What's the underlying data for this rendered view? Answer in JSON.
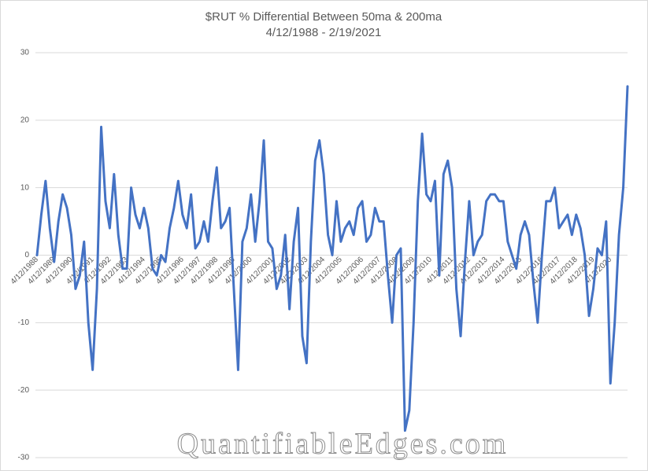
{
  "chart_data": {
    "type": "line",
    "title": "$RUT % Differential Between 50ma & 200ma",
    "subtitle": "4/12/1988 - 2/19/2021",
    "watermark": "QuantifiableEdges.com",
    "color": "#4472c4",
    "grid": true,
    "ylim": [
      -30,
      30
    ],
    "yticks": [
      -30,
      -20,
      -10,
      0,
      10,
      20,
      30
    ],
    "categories": [
      "4/12/1988",
      null,
      null,
      null,
      "4/12/1989",
      null,
      null,
      null,
      "4/12/1990",
      null,
      null,
      null,
      null,
      "4/12/1991",
      null,
      null,
      null,
      "4/12/1992",
      null,
      null,
      null,
      "4/12/1993",
      null,
      null,
      null,
      "4/12/1994",
      null,
      null,
      null,
      "4/12/1995",
      null,
      null,
      null,
      null,
      "4/12/1996",
      null,
      null,
      null,
      "4/12/1997",
      null,
      null,
      null,
      "4/12/1998",
      null,
      null,
      null,
      "4/12/1999",
      null,
      null,
      null,
      "4/12/2000",
      null,
      null,
      null,
      null,
      "4/12/2001",
      null,
      null,
      null,
      "4/12/2002",
      null,
      null,
      null,
      "4/12/2003",
      null,
      null,
      null,
      "4/12/2004",
      null,
      null,
      null,
      "4/12/2005",
      null,
      null,
      null,
      null,
      "4/12/2006",
      null,
      null,
      null,
      "4/12/2007",
      null,
      null,
      null,
      "4/12/2008",
      null,
      null,
      null,
      "4/12/2009",
      null,
      null,
      null,
      "4/12/2010",
      null,
      null,
      null,
      null,
      "4/12/2011",
      null,
      null,
      null,
      "4/12/2012",
      null,
      null,
      null,
      "4/12/2013",
      null,
      null,
      null,
      "4/12/2014",
      null,
      null,
      null,
      "4/12/2015",
      null,
      null,
      null,
      null,
      "4/12/2016",
      null,
      null,
      null,
      "4/12/2017",
      null,
      null,
      null,
      "4/12/2018",
      null,
      null,
      null,
      "4/12/2019",
      null,
      null,
      null,
      "4/12/2020",
      null,
      null,
      null,
      null
    ],
    "values": [
      0,
      6,
      11,
      4,
      -1,
      5,
      9,
      7,
      3,
      -5,
      -3,
      2,
      -10,
      -17,
      -5,
      19,
      8,
      4,
      12,
      3,
      -2,
      -2,
      10,
      6,
      4,
      7,
      4,
      -2,
      -3,
      0,
      -1,
      4,
      7,
      11,
      6,
      4,
      9,
      1,
      2,
      5,
      2,
      8,
      13,
      4,
      5,
      7,
      -5,
      -17,
      2,
      4,
      9,
      2,
      8,
      17,
      2,
      1,
      -5,
      -3,
      3,
      -8,
      2,
      7,
      -12,
      -16,
      2,
      14,
      17,
      12,
      3,
      0,
      8,
      2,
      4,
      5,
      3,
      7,
      8,
      2,
      3,
      7,
      5,
      5,
      -3,
      -10,
      0,
      1,
      -26,
      -23,
      -10,
      8,
      18,
      9,
      8,
      11,
      -3,
      12,
      14,
      10,
      -5,
      -12,
      -1,
      8,
      0,
      2,
      3,
      8,
      9,
      9,
      8,
      8,
      2,
      0,
      -2,
      3,
      5,
      3,
      -4,
      -10,
      0,
      8,
      8,
      10,
      4,
      5,
      6,
      3,
      6,
      4,
      0,
      -9,
      -5,
      1,
      0,
      5,
      -19,
      -10,
      3,
      10,
      25
    ]
  }
}
